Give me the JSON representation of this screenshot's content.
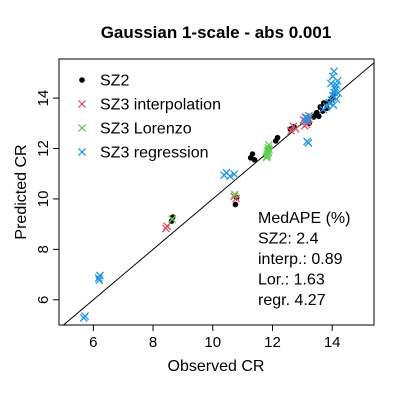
{
  "chart_data": {
    "type": "scatter",
    "title": "Gaussian  1-scale  -  abs 0.001",
    "xlabel": "Observed CR",
    "ylabel": "Predicted CR",
    "xlim": [
      4.85,
      15.4
    ],
    "ylim": [
      5.0,
      15.55
    ],
    "x_ticks": [
      6,
      8,
      10,
      12,
      14
    ],
    "y_ticks": [
      6,
      8,
      10,
      12,
      14
    ],
    "grid": false,
    "identity_line": true,
    "legend_position": "top-left",
    "series": [
      {
        "name": "SZ2",
        "marker": "dot",
        "color": "#000000",
        "points": [
          [
            8.62,
            9.12
          ],
          [
            8.66,
            9.28
          ],
          [
            10.76,
            9.78
          ],
          [
            10.8,
            10.05
          ],
          [
            11.27,
            11.63
          ],
          [
            11.33,
            11.78
          ],
          [
            11.4,
            11.55
          ],
          [
            11.86,
            11.98
          ],
          [
            12.11,
            12.3
          ],
          [
            12.17,
            12.43
          ],
          [
            12.6,
            12.77
          ],
          [
            12.72,
            12.86
          ],
          [
            13.23,
            13.0
          ],
          [
            13.38,
            13.25
          ],
          [
            13.48,
            13.42
          ],
          [
            13.55,
            13.28
          ],
          [
            13.6,
            13.65
          ],
          [
            13.68,
            13.48
          ],
          [
            13.72,
            13.81
          ],
          [
            13.82,
            13.6
          ],
          [
            13.9,
            13.85
          ],
          [
            14.0,
            14.0
          ],
          [
            14.05,
            14.15
          ]
        ]
      },
      {
        "name": "SZ3 interpolation",
        "marker": "x",
        "color": "#DF536B",
        "points": [
          [
            8.43,
            8.83
          ],
          [
            8.47,
            8.92
          ],
          [
            10.72,
            10.1
          ],
          [
            10.78,
            10.02
          ],
          [
            12.62,
            12.7
          ],
          [
            12.7,
            12.88
          ],
          [
            12.78,
            12.78
          ],
          [
            13.04,
            13.14
          ],
          [
            13.1,
            13.24
          ],
          [
            13.14,
            12.96
          ],
          [
            13.18,
            13.06
          ],
          [
            13.22,
            13.18
          ],
          [
            13.08,
            12.9
          ]
        ]
      },
      {
        "name": "SZ3 Lorenzo",
        "marker": "x",
        "color": "#61D04F",
        "points": [
          [
            8.64,
            9.2
          ],
          [
            10.74,
            10.18
          ],
          [
            11.8,
            11.64
          ],
          [
            11.82,
            11.78
          ],
          [
            11.84,
            11.9
          ],
          [
            11.86,
            12.02
          ],
          [
            11.88,
            12.14
          ],
          [
            11.82,
            11.7
          ],
          [
            11.86,
            11.84
          ],
          [
            11.88,
            11.96
          ]
        ]
      },
      {
        "name": "SZ3 regression",
        "marker": "x",
        "color": "#2297E6",
        "points": [
          [
            5.68,
            5.28
          ],
          [
            5.72,
            5.35
          ],
          [
            6.18,
            6.86
          ],
          [
            6.22,
            6.96
          ],
          [
            6.2,
            6.78
          ],
          [
            10.38,
            10.94
          ],
          [
            10.46,
            11.04
          ],
          [
            10.58,
            10.9
          ],
          [
            10.72,
            10.98
          ],
          [
            13.1,
            13.1
          ],
          [
            13.14,
            13.22
          ],
          [
            13.18,
            13.14
          ],
          [
            13.2,
            12.22
          ],
          [
            13.16,
            12.28
          ],
          [
            13.22,
            13.3
          ],
          [
            13.7,
            13.55
          ],
          [
            13.82,
            13.66
          ],
          [
            13.9,
            13.82
          ],
          [
            13.98,
            13.92
          ],
          [
            14.02,
            14.1
          ],
          [
            14.06,
            14.22
          ],
          [
            14.1,
            14.34
          ],
          [
            14.14,
            14.52
          ],
          [
            14.18,
            14.68
          ],
          [
            14.06,
            15.06
          ],
          [
            14.02,
            14.86
          ],
          [
            14.2,
            14.2
          ],
          [
            14.14,
            13.96
          ],
          [
            14.04,
            13.72
          ],
          [
            14.1,
            14.44
          ],
          [
            13.96,
            14.58
          ]
        ]
      }
    ],
    "annotations": [
      "MedAPE (%)",
      "SZ2: 2.4",
      "interp.: 0.89",
      "Lor.: 1.63",
      "regr. 4.27"
    ]
  }
}
